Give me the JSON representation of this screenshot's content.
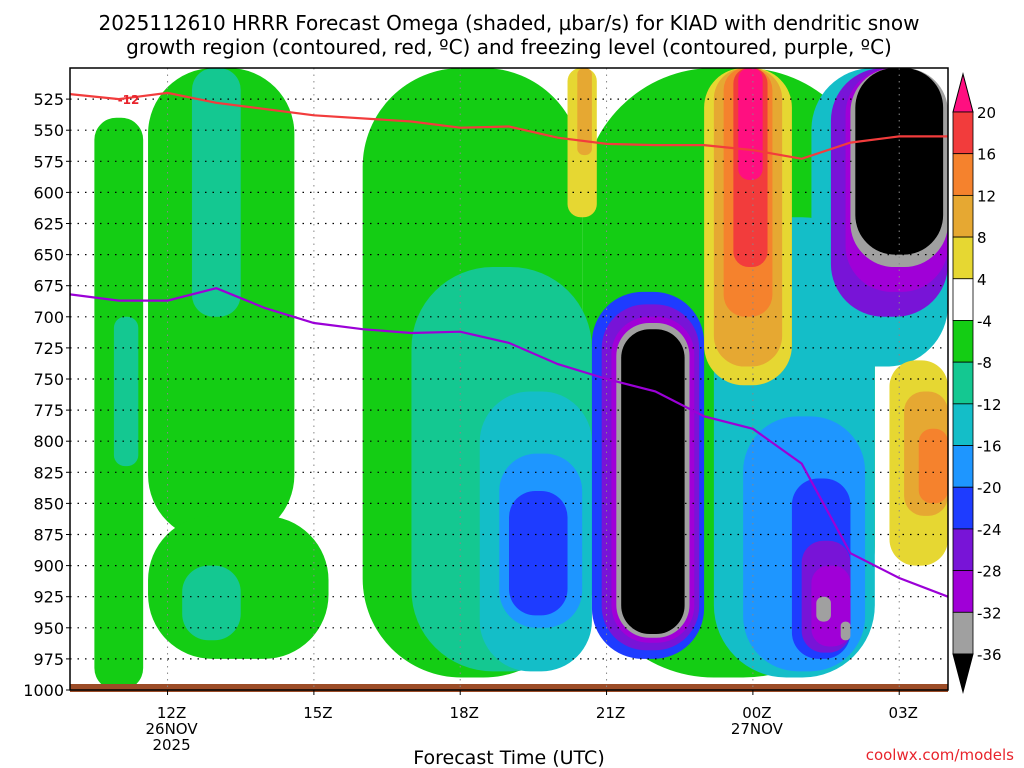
{
  "chart_data": {
    "type": "heatmap",
    "title": "2025112610 HRRR Forecast Omega (shaded, µbar/s) for KIAD with dendritic snow growth region (contoured, red, ºC) and freezing level (contoured, purple, ºC)",
    "title_lines": [
      "2025112610 HRRR Forecast Omega (shaded, µbar/s) for KIAD with dendritic snow",
      "growth region (contoured, red, ºC) and freezing level (contoured, purple, ºC)"
    ],
    "xlabel": "Forecast Time (UTC)",
    "ylabel": "",
    "credit": "coolwx.com/models",
    "x_range_hours": [
      10,
      28
    ],
    "y_axis": {
      "scale": "pressure_mb_inverted",
      "ylim": [
        1000,
        500
      ],
      "ticks": [
        525,
        550,
        575,
        600,
        625,
        650,
        675,
        700,
        725,
        750,
        775,
        800,
        825,
        850,
        875,
        900,
        925,
        950,
        975,
        1000
      ]
    },
    "x_ticks": [
      {
        "hour": 12,
        "lines": [
          "12Z",
          "26NOV",
          "2025"
        ]
      },
      {
        "hour": 15,
        "lines": [
          "15Z"
        ]
      },
      {
        "hour": 18,
        "lines": [
          "18Z"
        ]
      },
      {
        "hour": 21,
        "lines": [
          "21Z"
        ]
      },
      {
        "hour": 24,
        "lines": [
          "00Z",
          "27NOV"
        ]
      },
      {
        "hour": 27,
        "lines": [
          "03Z"
        ]
      }
    ],
    "grid": true,
    "colorbar": {
      "placement": "right",
      "levels": [
        20,
        16,
        12,
        8,
        4,
        -4,
        -8,
        -12,
        -16,
        -20,
        -24,
        -28,
        -32,
        -36
      ],
      "colors": [
        "#ff0f80",
        "#f23c3c",
        "#f5822d",
        "#e6a832",
        "#e6d732",
        "#ffffff",
        "#14cd14",
        "#14c891",
        "#14bec8",
        "#1e96ff",
        "#1e3cff",
        "#7814d7",
        "#a000d7",
        "#a0a0a0",
        "#000000"
      ]
    },
    "omega_cells": [
      {
        "x": [
          10.5,
          11.5
        ],
        "p": [
          540,
          1000
        ],
        "band": "-4 to -8"
      },
      {
        "x": [
          11.6,
          14.6
        ],
        "p": [
          500,
          880
        ],
        "band": "-4 to -8"
      },
      {
        "x": [
          11.6,
          15.3
        ],
        "p": [
          860,
          975
        ],
        "band": "-4 to -8"
      },
      {
        "x": [
          16.0,
          20.5
        ],
        "p": [
          500,
          990
        ],
        "band": "-4 to -8"
      },
      {
        "x": [
          20.5,
          26.5
        ],
        "p": [
          500,
          990
        ],
        "band": "-4 to -8"
      },
      {
        "x": [
          10.9,
          11.4
        ],
        "p": [
          700,
          820
        ],
        "band": "-8 to -12"
      },
      {
        "x": [
          12.5,
          13.5
        ],
        "p": [
          500,
          700
        ],
        "band": "-8 to -12"
      },
      {
        "x": [
          12.3,
          13.5
        ],
        "p": [
          900,
          960
        ],
        "band": "-8 to -12"
      },
      {
        "x": [
          17.0,
          20.7
        ],
        "p": [
          660,
          985
        ],
        "band": "-8 to -12"
      },
      {
        "x": [
          18.4,
          20.7
        ],
        "p": [
          760,
          985
        ],
        "band": "-12 to -16"
      },
      {
        "x": [
          18.8,
          20.5
        ],
        "p": [
          810,
          950
        ],
        "band": "-16 to -20"
      },
      {
        "x": [
          19.0,
          20.2
        ],
        "p": [
          840,
          940
        ],
        "band": "-20 to -24"
      },
      {
        "x": [
          20.7,
          23.0
        ],
        "p": [
          680,
          975
        ],
        "band": "-20 to -24"
      },
      {
        "x": [
          20.9,
          22.9
        ],
        "p": [
          690,
          968
        ],
        "band": "-24 to -28"
      },
      {
        "x": [
          21.1,
          22.8
        ],
        "p": [
          700,
          962
        ],
        "band": "-28 to -32"
      },
      {
        "x": [
          21.2,
          22.7
        ],
        "p": [
          705,
          958
        ],
        "band": "-32 to -36"
      },
      {
        "x": [
          21.3,
          22.6
        ],
        "p": [
          710,
          955
        ],
        "band": "< -36"
      },
      {
        "x": [
          23.2,
          26.5
        ],
        "p": [
          620,
          990
        ],
        "band": "-12 to -16"
      },
      {
        "x": [
          23.8,
          26.3
        ],
        "p": [
          780,
          985
        ],
        "band": "-16 to -20"
      },
      {
        "x": [
          24.8,
          26.0
        ],
        "p": [
          830,
          975
        ],
        "band": "-20 to -24"
      },
      {
        "x": [
          25.0,
          26.0
        ],
        "p": [
          880,
          970
        ],
        "band": "-24 to -28"
      },
      {
        "x": [
          25.2,
          26.0
        ],
        "p": [
          900,
          965
        ],
        "band": "-28 to -32"
      },
      {
        "x": [
          25.3,
          25.6
        ],
        "p": [
          925,
          945
        ],
        "band": "-32 to -36"
      },
      {
        "x": [
          25.8,
          26.0
        ],
        "p": [
          945,
          960
        ],
        "band": "-32 to -36"
      },
      {
        "x": [
          25.2,
          28.0
        ],
        "p": [
          500,
          740
        ],
        "band": "-12 to -16"
      },
      {
        "x": [
          25.6,
          28.0
        ],
        "p": [
          500,
          700
        ],
        "band": "-24 to -28"
      },
      {
        "x": [
          25.9,
          28.0
        ],
        "p": [
          500,
          680
        ],
        "band": "-28 to -32"
      },
      {
        "x": [
          26.0,
          28.0
        ],
        "p": [
          500,
          660
        ],
        "band": "-32 to -36"
      },
      {
        "x": [
          26.1,
          27.9
        ],
        "p": [
          500,
          650
        ],
        "band": "< -36"
      },
      {
        "x": [
          20.2,
          20.8
        ],
        "p": [
          500,
          620
        ],
        "band": "4 to 8"
      },
      {
        "x": [
          20.4,
          20.7
        ],
        "p": [
          500,
          570
        ],
        "band": "8 to 12"
      },
      {
        "x": [
          23.0,
          24.8
        ],
        "p": [
          500,
          755
        ],
        "band": "4 to 8"
      },
      {
        "x": [
          23.2,
          24.6
        ],
        "p": [
          500,
          740
        ],
        "band": "8 to 12"
      },
      {
        "x": [
          23.4,
          24.4
        ],
        "p": [
          500,
          700
        ],
        "band": "12 to 16"
      },
      {
        "x": [
          23.6,
          24.3
        ],
        "p": [
          500,
          660
        ],
        "band": "16 to 20"
      },
      {
        "x": [
          23.7,
          24.2
        ],
        "p": [
          500,
          590
        ],
        "band": "> 20"
      },
      {
        "x": [
          26.8,
          28.0
        ],
        "p": [
          735,
          900
        ],
        "band": "4 to 8"
      },
      {
        "x": [
          27.1,
          28.0
        ],
        "p": [
          760,
          860
        ],
        "band": "8 to 12"
      },
      {
        "x": [
          27.4,
          28.0
        ],
        "p": [
          790,
          850
        ],
        "band": "12 to 16"
      }
    ],
    "series": [
      {
        "name": "-12",
        "label_text": "-12",
        "color": "#f23c3c",
        "points": [
          [
            10.0,
            521
          ],
          [
            11.0,
            525
          ],
          [
            12.0,
            520
          ],
          [
            13.0,
            528
          ],
          [
            15.0,
            538
          ],
          [
            17.0,
            543
          ],
          [
            18.0,
            548
          ],
          [
            19.0,
            547
          ],
          [
            20.0,
            556
          ],
          [
            21.0,
            561
          ],
          [
            22.0,
            562
          ],
          [
            23.0,
            562
          ],
          [
            24.0,
            566
          ],
          [
            25.0,
            573
          ],
          [
            26.0,
            560
          ],
          [
            27.0,
            555
          ],
          [
            28.0,
            555
          ]
        ]
      },
      {
        "name": "freezing level",
        "color": "#9b00d7",
        "points": [
          [
            10.0,
            682
          ],
          [
            11.0,
            687
          ],
          [
            12.0,
            687
          ],
          [
            13.0,
            677
          ],
          [
            14.0,
            693
          ],
          [
            15.0,
            705
          ],
          [
            16.0,
            710
          ],
          [
            17.0,
            713
          ],
          [
            18.0,
            712
          ],
          [
            19.0,
            721
          ],
          [
            20.0,
            738
          ],
          [
            21.0,
            750
          ],
          [
            22.0,
            760
          ],
          [
            23.0,
            780
          ],
          [
            24.0,
            790
          ],
          [
            25.0,
            818
          ],
          [
            26.0,
            890
          ],
          [
            27.0,
            910
          ],
          [
            28.0,
            925
          ]
        ]
      }
    ]
  }
}
